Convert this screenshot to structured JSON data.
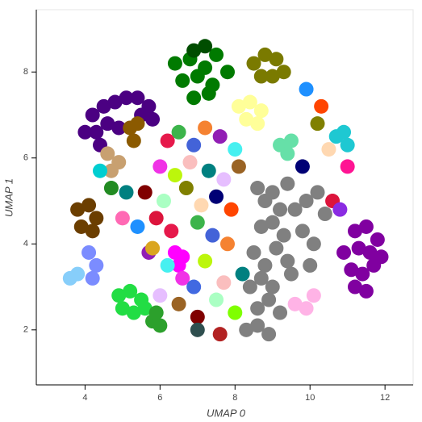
{
  "chart_data": {
    "type": "scatter",
    "xlabel": "UMAP 0",
    "ylabel": "UMAP 1",
    "xlim": [
      2.7,
      12.75
    ],
    "ylim": [
      0.72,
      9.45
    ],
    "xticks": [
      4,
      6,
      8,
      10,
      12
    ],
    "yticks": [
      2,
      4,
      6,
      8
    ],
    "series": [
      {
        "color": "#808080",
        "x": [
          8.6,
          8.8,
          9.0,
          9.2,
          9.4,
          8.7,
          9.0,
          9.3,
          9.6,
          9.9,
          10.2,
          10.4,
          9.8,
          10.1,
          8.5,
          8.8,
          9.1,
          9.4,
          8.4,
          8.7,
          9.0,
          8.6,
          8.9,
          9.2,
          8.3,
          8.6,
          8.9,
          9.5,
          10.0
        ],
        "y": [
          5.3,
          5.0,
          5.2,
          4.8,
          5.4,
          4.4,
          4.5,
          4.2,
          4.8,
          5.0,
          5.2,
          4.7,
          4.3,
          4.0,
          3.8,
          3.5,
          3.9,
          3.6,
          3.0,
          3.2,
          3.0,
          2.5,
          2.7,
          2.4,
          2.0,
          2.1,
          1.9,
          3.3,
          3.5
        ]
      },
      {
        "color": "#4b0082",
        "x": [
          4.2,
          4.5,
          4.8,
          5.1,
          5.4,
          5.7,
          4.3,
          4.6,
          4.9,
          5.5,
          5.8,
          4.0,
          4.4
        ],
        "y": [
          7.0,
          7.2,
          7.3,
          7.4,
          7.4,
          7.2,
          6.6,
          6.8,
          6.7,
          7.0,
          6.9,
          6.6,
          6.3
        ]
      },
      {
        "color": "#8000a0",
        "x": [
          11.2,
          11.5,
          11.8,
          11.3,
          11.6,
          11.9,
          11.1,
          11.4,
          11.7,
          11.2,
          11.5,
          10.9
        ],
        "y": [
          4.3,
          4.4,
          4.1,
          3.9,
          3.8,
          3.7,
          3.4,
          3.3,
          3.5,
          3.0,
          2.9,
          3.8
        ]
      },
      {
        "color": "#007a00",
        "x": [
          6.4,
          6.8,
          7.2,
          7.5,
          6.6,
          7.0,
          7.4,
          7.8,
          6.9,
          7.3
        ],
        "y": [
          8.2,
          8.3,
          8.1,
          8.4,
          7.8,
          7.9,
          7.7,
          8.0,
          7.4,
          7.5
        ]
      },
      {
        "color": "#7a7a00",
        "x": [
          8.5,
          8.8,
          9.1,
          9.3,
          8.7,
          9.0
        ],
        "y": [
          8.2,
          8.4,
          8.3,
          8.0,
          7.9,
          7.9
        ]
      },
      {
        "color": "#004d00",
        "x": [
          6.9,
          7.2
        ],
        "y": [
          8.5,
          8.6
        ]
      },
      {
        "color": "#ffff99",
        "x": [
          8.1,
          8.4,
          8.7,
          8.3,
          8.6
        ],
        "y": [
          7.2,
          7.3,
          7.1,
          6.9,
          6.8
        ]
      },
      {
        "color": "#6b3e00",
        "x": [
          3.8,
          4.1,
          4.3,
          3.9,
          4.2
        ],
        "y": [
          4.8,
          4.9,
          4.6,
          4.4,
          4.3
        ]
      },
      {
        "color": "#8b5a00",
        "x": [
          5.2,
          5.4,
          5.3
        ],
        "y": [
          6.7,
          6.8,
          6.4
        ]
      },
      {
        "color": "#22dd44",
        "x": [
          4.9,
          5.2,
          5.5,
          5.0,
          5.3,
          5.6
        ],
        "y": [
          2.8,
          2.9,
          2.7,
          2.5,
          2.4,
          2.5
        ]
      },
      {
        "color": "#2ca02c",
        "x": [
          5.8,
          6.0,
          5.9
        ],
        "y": [
          2.2,
          2.1,
          2.4
        ]
      },
      {
        "color": "#87cefa",
        "x": [
          3.6,
          3.8
        ],
        "y": [
          3.2,
          3.3
        ]
      },
      {
        "color": "#1ec8d2",
        "x": [
          10.7,
          10.9,
          11.0
        ],
        "y": [
          6.5,
          6.6,
          6.3
        ]
      },
      {
        "color": "#66e0a8",
        "x": [
          9.2,
          9.4,
          9.5
        ],
        "y": [
          6.3,
          6.1,
          6.4
        ]
      },
      {
        "color": "#7b8cff",
        "x": [
          4.1,
          4.3,
          4.2
        ],
        "y": [
          3.8,
          3.5,
          3.2
        ]
      },
      {
        "color": "#ff00ff",
        "x": [
          6.4,
          6.6,
          6.5
        ],
        "y": [
          3.8,
          3.7,
          3.5
        ]
      },
      {
        "color": "#ffb3e6",
        "x": [
          9.6,
          9.9,
          10.1
        ],
        "y": [
          2.6,
          2.5,
          2.8
        ]
      },
      {
        "color": "#c8a070",
        "x": [
          4.6,
          4.9,
          4.7
        ],
        "y": [
          6.1,
          5.9,
          5.7
        ]
      },
      {
        "color": "#008080",
        "x": [
          5.1
        ],
        "y": [
          5.2
        ]
      },
      {
        "colors": [
          "#e6194b",
          "#3cb44b",
          "#4363d8",
          "#f58231",
          "#911eb4",
          "#46f0f0",
          "#f032e6",
          "#bcf60c",
          "#fabebe",
          "#008080",
          "#e6beff",
          "#9a6324",
          "#800000",
          "#aaffc3",
          "#808000",
          "#ffd8b1",
          "#000075",
          "#ff4500",
          "#1e90ff",
          "#dc143c",
          "#e6194b",
          "#3cb44b",
          "#4363d8",
          "#f58231",
          "#911eb4",
          "#46f0f0",
          "#f032e6",
          "#bcf60c",
          "#fabebe",
          "#008080",
          "#e6beff",
          "#9a6324",
          "#800000",
          "#aaffc3",
          "#808000",
          "#ffd8b1",
          "#000075",
          "#ff4500",
          "#1e90ff",
          "#dc143c",
          "#ff69b4",
          "#228b22",
          "#daa520",
          "#00ced1",
          "#8a2be2",
          "#ff1493",
          "#2f4f4f",
          "#b22222",
          "#7fff00",
          "#4169e1"
        ],
        "x": [
          6.2,
          6.5,
          6.9,
          7.2,
          7.6,
          8.0,
          6.0,
          6.4,
          6.8,
          7.3,
          7.7,
          8.1,
          5.6,
          6.1,
          6.7,
          7.1,
          7.5,
          7.9,
          5.4,
          5.9,
          6.3,
          7.0,
          7.4,
          7.8,
          5.7,
          6.2,
          6.6,
          7.2,
          7.7,
          8.2,
          6.0,
          6.5,
          7.0,
          7.5,
          10.2,
          10.5,
          9.8,
          10.3,
          9.9,
          10.6,
          5.0,
          4.7,
          5.8,
          4.4,
          10.8,
          11.0,
          7.0,
          7.6,
          8.0,
          6.9
        ],
        "y": [
          6.4,
          6.6,
          6.3,
          6.7,
          6.5,
          6.2,
          5.8,
          5.6,
          5.9,
          5.7,
          5.5,
          5.8,
          5.2,
          5.0,
          5.3,
          4.9,
          5.1,
          4.8,
          4.4,
          4.6,
          4.3,
          4.5,
          4.2,
          4.0,
          3.8,
          3.5,
          3.2,
          3.6,
          3.1,
          3.3,
          2.8,
          2.6,
          2.3,
          2.7,
          6.8,
          6.2,
          5.8,
          7.2,
          7.6,
          5.0,
          4.6,
          5.3,
          3.9,
          5.7,
          4.8,
          5.8,
          2.0,
          1.9,
          2.4,
          3.0
        ]
      }
    ]
  }
}
